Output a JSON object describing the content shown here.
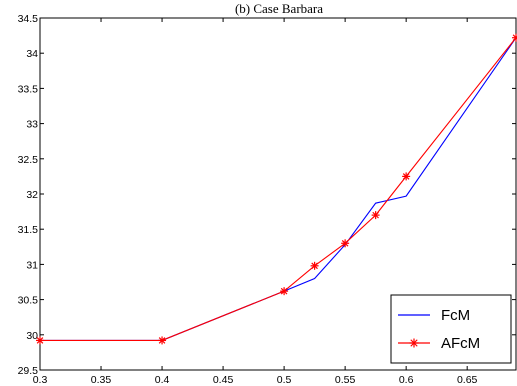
{
  "chart_data": {
    "type": "line",
    "title": "(b) Case Barbara",
    "xlabel": "",
    "ylabel": "",
    "xlim": [
      0.3,
      0.69
    ],
    "ylim": [
      29.5,
      34.5
    ],
    "xticks": [
      "0.3",
      "0.35",
      "0.4",
      "0.45",
      "0.5",
      "0.55",
      "0.6",
      "0.65"
    ],
    "yticks": [
      "29.5",
      "30",
      "30.5",
      "31",
      "31.5",
      "32",
      "32.5",
      "33",
      "33.5",
      "34",
      "34.5"
    ],
    "grid": false,
    "legend_position": "bottom-right",
    "series": [
      {
        "name": "FcM",
        "color": "#0000ff",
        "marker": "none",
        "x": [
          0.3,
          0.4,
          0.5,
          0.525,
          0.55,
          0.575,
          0.6,
          0.69
        ],
        "y": [
          29.92,
          29.92,
          30.62,
          30.8,
          31.28,
          31.87,
          31.97,
          34.22
        ]
      },
      {
        "name": "AFcM",
        "color": "#ff0000",
        "marker": "asterisk",
        "x": [
          0.3,
          0.4,
          0.5,
          0.525,
          0.55,
          0.575,
          0.6,
          0.69
        ],
        "y": [
          29.92,
          29.92,
          30.62,
          30.98,
          31.3,
          31.7,
          32.25,
          34.22
        ]
      }
    ]
  }
}
